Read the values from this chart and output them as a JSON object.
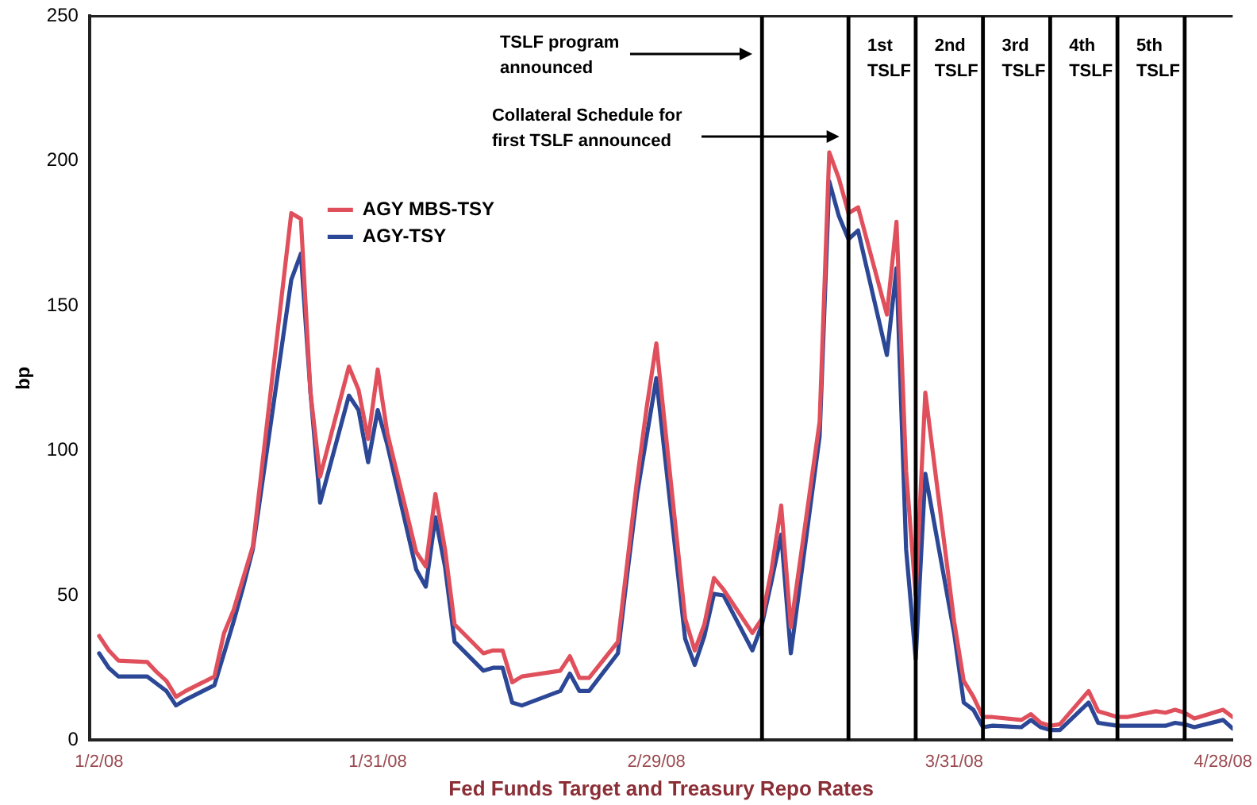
{
  "chart_data": {
    "type": "line",
    "xlabel": "Fed Funds Target and Treasury Repo Rates",
    "ylabel": "bp",
    "x": [
      "2008-01-02",
      "2008-01-03",
      "2008-01-04",
      "2008-01-07",
      "2008-01-08",
      "2008-01-09",
      "2008-01-10",
      "2008-01-11",
      "2008-01-14",
      "2008-01-15",
      "2008-01-16",
      "2008-01-17",
      "2008-01-18",
      "2008-01-22",
      "2008-01-23",
      "2008-01-24",
      "2008-01-25",
      "2008-01-28",
      "2008-01-29",
      "2008-01-30",
      "2008-01-31",
      "2008-02-01",
      "2008-02-04",
      "2008-02-05",
      "2008-02-06",
      "2008-02-07",
      "2008-02-08",
      "2008-02-11",
      "2008-02-12",
      "2008-02-13",
      "2008-02-14",
      "2008-02-15",
      "2008-02-19",
      "2008-02-20",
      "2008-02-21",
      "2008-02-22",
      "2008-02-25",
      "2008-02-26",
      "2008-02-27",
      "2008-02-28",
      "2008-02-29",
      "2008-03-03",
      "2008-03-04",
      "2008-03-05",
      "2008-03-06",
      "2008-03-07",
      "2008-03-10",
      "2008-03-11",
      "2008-03-12",
      "2008-03-13",
      "2008-03-14",
      "2008-03-17",
      "2008-03-18",
      "2008-03-19",
      "2008-03-20",
      "2008-03-21",
      "2008-03-24",
      "2008-03-25",
      "2008-03-26",
      "2008-03-27",
      "2008-03-28",
      "2008-03-31",
      "2008-04-01",
      "2008-04-02",
      "2008-04-03",
      "2008-04-04",
      "2008-04-07",
      "2008-04-08",
      "2008-04-09",
      "2008-04-10",
      "2008-04-11",
      "2008-04-14",
      "2008-04-15",
      "2008-04-16",
      "2008-04-17",
      "2008-04-18",
      "2008-04-21",
      "2008-04-22",
      "2008-04-23",
      "2008-04-24",
      "2008-04-25",
      "2008-04-28",
      "2008-04-29"
    ],
    "series": [
      {
        "name": "AGY MBS-TSY",
        "color": "#e0505c",
        "values": [
          36,
          31,
          27.5,
          27,
          23.5,
          20.5,
          15,
          17,
          22,
          37,
          45,
          56,
          67,
          182,
          180,
          120,
          91,
          129,
          121,
          104,
          128,
          106,
          65,
          60,
          85,
          66,
          40,
          30,
          31,
          31,
          20,
          22,
          24,
          29,
          21.5,
          21.5,
          34,
          62,
          90,
          115,
          137,
          42,
          31,
          40,
          56,
          52,
          37,
          42,
          59,
          81,
          39,
          110,
          203,
          194,
          182,
          184,
          147,
          179,
          93,
          50,
          120,
          41,
          20.5,
          15,
          8,
          8,
          7,
          9,
          6,
          5,
          5.5,
          17,
          10,
          9,
          8,
          8,
          10,
          9.5,
          10.5,
          9.5,
          7.5,
          10.5,
          8
        ]
      },
      {
        "name": "AGY-TSY",
        "color": "#2b4796",
        "values": [
          30,
          25,
          22,
          22,
          19.5,
          17,
          12,
          14,
          19,
          30,
          41,
          53,
          66,
          159,
          168,
          120,
          82,
          119,
          114,
          96,
          114,
          102,
          59,
          53,
          77,
          60,
          34,
          24,
          25,
          25,
          13,
          12,
          17,
          23,
          17,
          17,
          30,
          58,
          85,
          105,
          125,
          35,
          26,
          36,
          50.5,
          50,
          31,
          40,
          55,
          71,
          30,
          105,
          193,
          181,
          173,
          176,
          133,
          163,
          66,
          28,
          92,
          37,
          13,
          10.5,
          4.5,
          5,
          4.5,
          7,
          4.5,
          3.5,
          3.5,
          13,
          6,
          5.5,
          5,
          5,
          5,
          5,
          6,
          5.5,
          4.5,
          7,
          4
        ]
      }
    ],
    "xlim": [
      "2008-01-01",
      "2008-04-29"
    ],
    "xticks": [
      {
        "value": "2008-01-02",
        "label": "1/2/08"
      },
      {
        "value": "2008-01-31",
        "label": "1/31/08"
      },
      {
        "value": "2008-02-29",
        "label": "2/29/08"
      },
      {
        "value": "2008-03-31",
        "label": "3/31/08"
      },
      {
        "value": "2008-04-28",
        "label": "4/28/08"
      }
    ],
    "ylim": [
      0,
      250
    ],
    "yticks": [
      0,
      50,
      100,
      150,
      200,
      250
    ],
    "ref_lines": [
      {
        "axis": "x",
        "value": "2008-03-11",
        "color": "#000000"
      },
      {
        "axis": "x",
        "value": "2008-03-20",
        "color": "#000000"
      },
      {
        "axis": "x",
        "value": "2008-03-27",
        "label": "1st\nTSLF",
        "color": "#000000"
      },
      {
        "axis": "x",
        "value": "2008-04-03",
        "label": "2nd\nTSLF",
        "color": "#000000"
      },
      {
        "axis": "x",
        "value": "2008-04-10",
        "label": "3rd\nTSLF",
        "color": "#000000"
      },
      {
        "axis": "x",
        "value": "2008-04-17",
        "label": "4th\nTSLF",
        "color": "#000000"
      },
      {
        "axis": "x",
        "value": "2008-04-24",
        "label": "5th\nTSLF",
        "color": "#000000"
      }
    ],
    "annotations": [
      "TSLF program\nannounced",
      "Collateral Schedule for\nfirst TSLF announced"
    ],
    "grid": false,
    "legend": "top left",
    "marker": "none",
    "line_style": "solid"
  }
}
